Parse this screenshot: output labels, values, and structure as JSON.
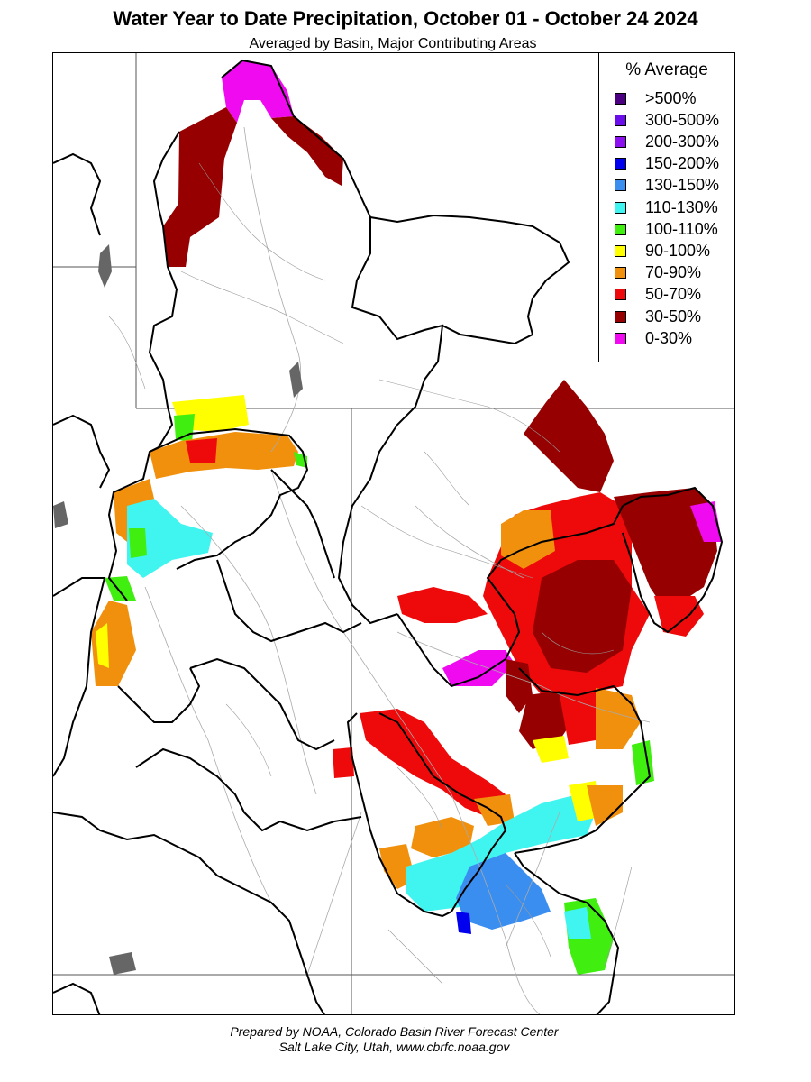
{
  "header": {
    "title": "Water Year to Date Precipitation, October 01  - October 24 2024",
    "subtitle": "Averaged by Basin, Major Contributing Areas"
  },
  "legend": {
    "title": "% Average",
    "items": [
      {
        "label": ">500%",
        "color": "#4B0082"
      },
      {
        "label": "300-500%",
        "color": "#6A0DEB"
      },
      {
        "label": "200-300%",
        "color": "#8A10F0"
      },
      {
        "label": "150-200%",
        "color": "#0000EE"
      },
      {
        "label": "130-150%",
        "color": "#3A8EF0"
      },
      {
        "label": "110-130%",
        "color": "#40F5F0"
      },
      {
        "label": "100-110%",
        "color": "#40EE10"
      },
      {
        "label": "90-100%",
        "color": "#FFFF00"
      },
      {
        "label": "70-90%",
        "color": "#F0900C"
      },
      {
        "label": "50-70%",
        "color": "#EE0A0A"
      },
      {
        "label": "30-50%",
        "color": "#960000"
      },
      {
        "label": "0-30%",
        "color": "#F00AF0"
      }
    ]
  },
  "footer": {
    "line1": "Prepared by NOAA, Colorado Basin River Forecast Center",
    "line2": "Salt Lake City, Utah, www.cbrfc.noaa.gov"
  }
}
